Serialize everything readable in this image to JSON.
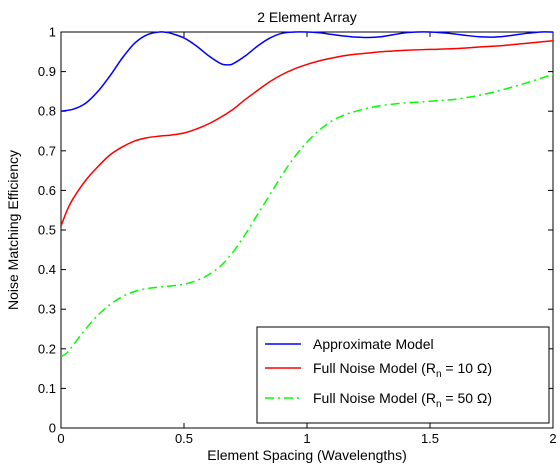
{
  "chart_data": {
    "type": "line",
    "title": "2 Element Array",
    "xlabel": "Element Spacing (Wavelengths)",
    "ylabel": "Noise Matching Efficiency",
    "xlim": [
      0,
      2
    ],
    "ylim": [
      0,
      1
    ],
    "xticks": [
      0,
      0.5,
      1,
      1.5,
      2
    ],
    "xtick_labels": [
      "0",
      "0.5",
      "1",
      "1.5",
      "2"
    ],
    "yticks": [
      0,
      0.1,
      0.2,
      0.3,
      0.4,
      0.5,
      0.6,
      0.7,
      0.8,
      0.9,
      1
    ],
    "ytick_labels": [
      "0",
      "0.1",
      "0.2",
      "0.3",
      "0.4",
      "0.5",
      "0.6",
      "0.7",
      "0.8",
      "0.9",
      "1"
    ],
    "grid": false,
    "legend_position": "bottom-right",
    "series": [
      {
        "name": "Approximate Model",
        "legend_prefix": "Approximate Model",
        "legend_subscript": "",
        "legend_suffix": "",
        "color": "#0000ff",
        "dash": "solid",
        "x": [
          0,
          0.05,
          0.1,
          0.15,
          0.2,
          0.25,
          0.3,
          0.35,
          0.4,
          0.43,
          0.45,
          0.5,
          0.55,
          0.6,
          0.65,
          0.68,
          0.7,
          0.75,
          0.8,
          0.85,
          0.9,
          0.95,
          1.0,
          1.05,
          1.1,
          1.15,
          1.2,
          1.25,
          1.3,
          1.35,
          1.4,
          1.45,
          1.5,
          1.55,
          1.6,
          1.65,
          1.7,
          1.75,
          1.8,
          1.85,
          1.9,
          1.95,
          2.0
        ],
        "y": [
          0.8,
          0.805,
          0.82,
          0.85,
          0.89,
          0.935,
          0.972,
          0.993,
          1.0,
          0.999,
          0.996,
          0.985,
          0.965,
          0.94,
          0.92,
          0.917,
          0.92,
          0.94,
          0.965,
          0.985,
          0.997,
          1.0,
          1.0,
          0.998,
          0.994,
          0.99,
          0.987,
          0.986,
          0.988,
          0.993,
          0.998,
          1.0,
          1.0,
          0.998,
          0.995,
          0.991,
          0.988,
          0.987,
          0.989,
          0.993,
          0.997,
          1.0,
          1.0
        ]
      },
      {
        "name": "Full Noise Model (Rn = 10 Ω)",
        "legend_prefix": "Full Noise Model (R",
        "legend_subscript": "n",
        "legend_suffix": " = 10 Ω)",
        "color": "#ff0000",
        "dash": "solid",
        "x": [
          0,
          0.025,
          0.05,
          0.1,
          0.15,
          0.2,
          0.25,
          0.3,
          0.35,
          0.4,
          0.45,
          0.5,
          0.55,
          0.6,
          0.65,
          0.7,
          0.75,
          0.8,
          0.85,
          0.9,
          0.95,
          1.0,
          1.05,
          1.1,
          1.15,
          1.2,
          1.25,
          1.3,
          1.35,
          1.4,
          1.5,
          1.6,
          1.7,
          1.8,
          1.9,
          2.0
        ],
        "y": [
          0.51,
          0.55,
          0.58,
          0.625,
          0.66,
          0.69,
          0.71,
          0.725,
          0.733,
          0.737,
          0.74,
          0.745,
          0.755,
          0.768,
          0.785,
          0.805,
          0.83,
          0.853,
          0.875,
          0.893,
          0.907,
          0.918,
          0.927,
          0.934,
          0.94,
          0.944,
          0.947,
          0.95,
          0.952,
          0.954,
          0.956,
          0.958,
          0.962,
          0.966,
          0.972,
          0.978
        ]
      },
      {
        "name": "Full Noise Model (Rn = 50 Ω)",
        "legend_prefix": "Full Noise Model (R",
        "legend_subscript": "n",
        "legend_suffix": " = 50 Ω)",
        "color": "#00ff00",
        "dash": "dashdot",
        "x": [
          0,
          0.025,
          0.05,
          0.1,
          0.15,
          0.2,
          0.25,
          0.3,
          0.35,
          0.4,
          0.45,
          0.5,
          0.55,
          0.6,
          0.65,
          0.7,
          0.75,
          0.8,
          0.85,
          0.9,
          0.95,
          1.0,
          1.05,
          1.1,
          1.15,
          1.2,
          1.25,
          1.3,
          1.35,
          1.4,
          1.45,
          1.5,
          1.6,
          1.7,
          1.8,
          1.9,
          2.0
        ],
        "y": [
          0.18,
          0.19,
          0.21,
          0.25,
          0.285,
          0.312,
          0.332,
          0.345,
          0.352,
          0.356,
          0.359,
          0.363,
          0.372,
          0.387,
          0.41,
          0.445,
          0.49,
          0.54,
          0.59,
          0.64,
          0.685,
          0.722,
          0.752,
          0.775,
          0.79,
          0.8,
          0.808,
          0.814,
          0.818,
          0.821,
          0.823,
          0.825,
          0.83,
          0.84,
          0.855,
          0.873,
          0.893
        ]
      }
    ]
  }
}
